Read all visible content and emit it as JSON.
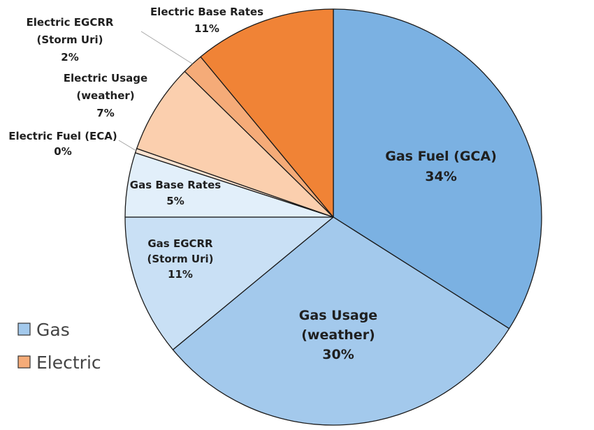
{
  "chart_data": {
    "type": "pie",
    "title": "",
    "slices": [
      {
        "label_lines": [
          "Gas Fuel (GCA)",
          "34%"
        ],
        "value": 34,
        "color": "#7BB1E2",
        "group": "Gas"
      },
      {
        "label_lines": [
          "Gas Usage",
          "(weather)",
          "30%"
        ],
        "value": 30,
        "color": "#A3C9EC",
        "group": "Gas"
      },
      {
        "label_lines": [
          "Gas EGCRR",
          "(Storm Uri)",
          "11%"
        ],
        "value": 11,
        "color": "#C9E0F5",
        "group": "Gas"
      },
      {
        "label_lines": [
          "Gas Base Rates",
          "5%"
        ],
        "value": 5,
        "color": "#E2EFFA",
        "group": "Gas"
      },
      {
        "label_lines": [
          "Electric Fuel (ECA)",
          "0%"
        ],
        "value": 0.35,
        "color": "#FCE3D1",
        "group": "Electric"
      },
      {
        "label_lines": [
          "Electric Usage",
          "(weather)",
          "7%"
        ],
        "value": 7,
        "color": "#FBCFAE",
        "group": "Electric"
      },
      {
        "label_lines": [
          "Electric EGCRR",
          "(Storm Uri)",
          "2%"
        ],
        "value": 1.65,
        "color": "#F5AB78",
        "group": "Electric"
      },
      {
        "label_lines": [
          "Electric Base Rates",
          "11%"
        ],
        "value": 11,
        "color": "#F08336",
        "group": "Electric"
      }
    ],
    "legend": {
      "placement": "bottom-left",
      "entries": [
        {
          "name": "Gas",
          "color": "#A3C9EC"
        },
        {
          "name": "Electric",
          "color": "#F5AB78"
        }
      ]
    }
  }
}
